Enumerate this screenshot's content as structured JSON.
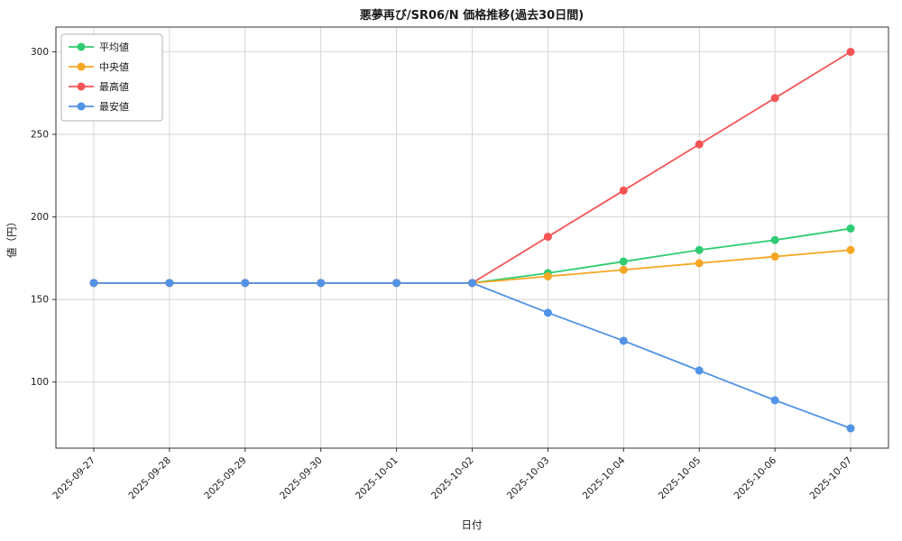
{
  "chart_data": {
    "type": "line",
    "title": "悪夢再び/SR06/N 価格推移(過去30日間)",
    "xlabel": "日付",
    "ylabel": "値（円）",
    "categories": [
      "2025-09-27",
      "2025-09-28",
      "2025-09-29",
      "2025-09-30",
      "2025-10-01",
      "2025-10-02",
      "2025-10-03",
      "2025-10-04",
      "2025-10-05",
      "2025-10-06",
      "2025-10-07"
    ],
    "series": [
      {
        "name": "平均値",
        "color": "#2ecc71",
        "values": [
          160,
          160,
          160,
          160,
          160,
          160,
          166,
          173,
          180,
          186,
          193
        ]
      },
      {
        "name": "中央値",
        "color": "#f5a623",
        "values": [
          160,
          160,
          160,
          160,
          160,
          160,
          164,
          168,
          172,
          176,
          180
        ]
      },
      {
        "name": "最高値",
        "color": "#f55454",
        "values": [
          160,
          160,
          160,
          160,
          160,
          160,
          188,
          216,
          244,
          272,
          300
        ]
      },
      {
        "name": "最安値",
        "color": "#5193e6",
        "values": [
          160,
          160,
          160,
          160,
          160,
          160,
          142,
          125,
          107,
          89,
          72
        ]
      }
    ],
    "yticks": [
      100,
      150,
      200,
      250,
      300
    ],
    "ylim": [
      60,
      315
    ],
    "grid": true,
    "legend_position": "upper left",
    "marker": "circle"
  }
}
